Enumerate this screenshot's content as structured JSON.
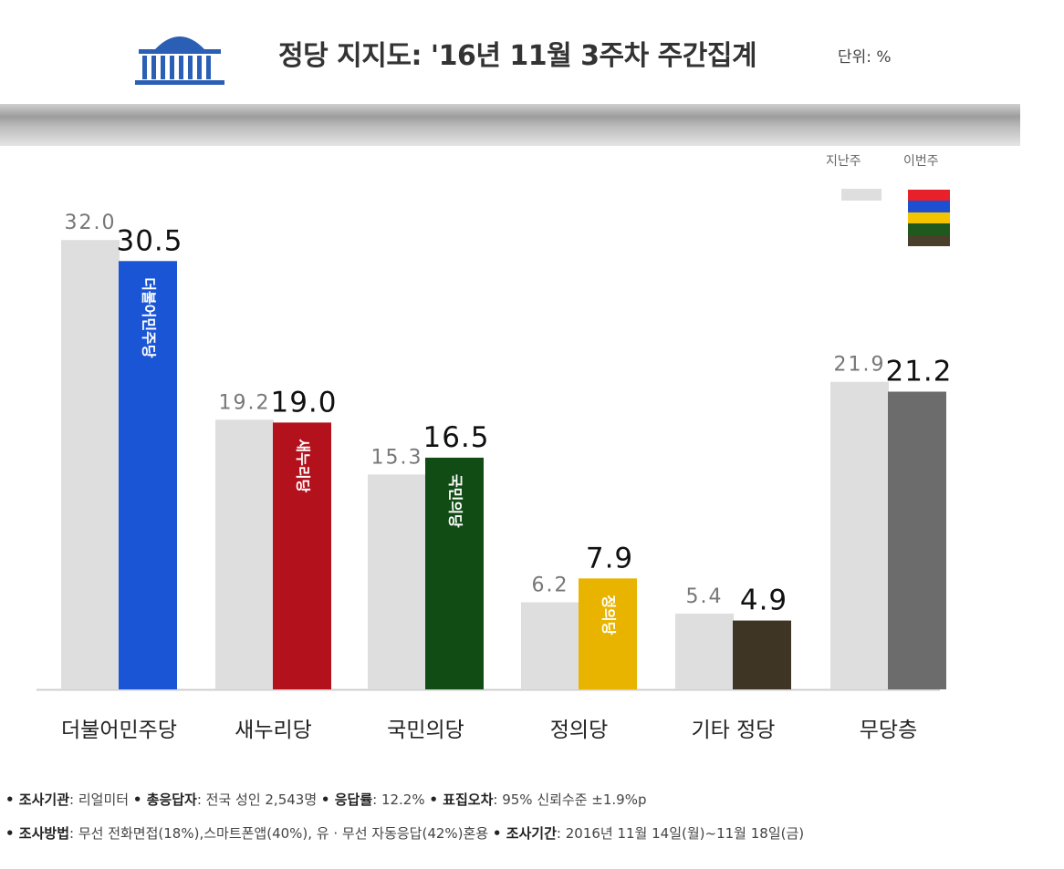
{
  "header": {
    "title": "정당 지지도: '16년 11월 3주차 주간집계",
    "unit": "단위: %"
  },
  "legend": {
    "previous_label": "지난주",
    "current_label": "이번주",
    "current_colors": [
      "#e8202a",
      "#1c4fd1",
      "#f5c400",
      "#1e5a1e",
      "#4a3f2a"
    ]
  },
  "chart_data": {
    "type": "bar",
    "categories": [
      "더불어민주당",
      "새누리당",
      "국민의당",
      "정의당",
      "기타 정당",
      "무당층"
    ],
    "series": [
      {
        "name": "지난주",
        "values": [
          32.0,
          19.2,
          15.3,
          6.2,
          5.4,
          21.9
        ],
        "color": "#dedede"
      },
      {
        "name": "이번주",
        "values": [
          30.5,
          19.0,
          16.5,
          7.9,
          4.9,
          21.2
        ],
        "colors": [
          "#1a55d6",
          "#b3121c",
          "#114c14",
          "#e9b400",
          "#3f3524",
          "#6c6c6c"
        ]
      }
    ],
    "bar_inner_labels": [
      "더불어민주당",
      "새누리당",
      "국민의당",
      "정의당",
      "",
      ""
    ],
    "ylim": [
      0,
      33
    ],
    "grid": false,
    "legend_position": "top-right"
  },
  "footer": {
    "line1": [
      {
        "key": "조사기관",
        "value": "리얼미터"
      },
      {
        "key": "총응답자",
        "value": "전국 성인 2,543명"
      },
      {
        "key": "응답률",
        "value": "12.2%"
      },
      {
        "key": "표집오차",
        "value": "95% 신뢰수준 ±1.9%p"
      }
    ],
    "line2": [
      {
        "key": "조사방법",
        "value": "무선 전화면접(18%),스마트폰앱(40%), 유 · 무선 자동응답(42%)혼용"
      },
      {
        "key": "조사기간",
        "value": "2016년 11월 14일(월)~11월 18일(금)"
      }
    ]
  }
}
